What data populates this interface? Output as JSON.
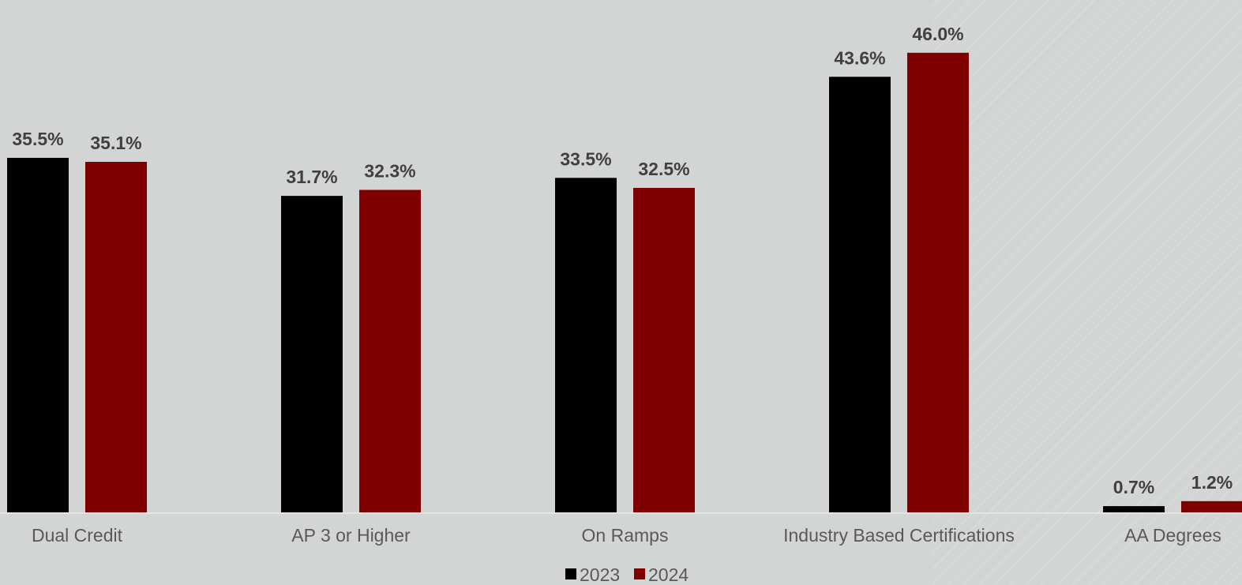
{
  "chart_data": {
    "type": "bar",
    "title": "",
    "xlabel": "",
    "ylabel": "",
    "categories": [
      "Dual Credit",
      "AP 3 or Higher",
      "On Ramps",
      "Industry Based Certifications",
      "AA Degrees"
    ],
    "series": [
      {
        "name": "2023",
        "values": [
          35.5,
          31.7,
          33.5,
          43.6,
          0.7
        ],
        "labels": [
          "35.5%",
          "31.7%",
          "33.5%",
          "43.6%",
          "0.7%"
        ],
        "color": "#000000"
      },
      {
        "name": "2024",
        "values": [
          35.1,
          32.3,
          32.5,
          46.0,
          1.2
        ],
        "labels": [
          "35.1%",
          "32.3%",
          "32.5%",
          "46.0%",
          "1.2%"
        ],
        "color": "#800000"
      }
    ],
    "ylim": [
      0,
      49.3
    ],
    "grid": false,
    "legend_position": "bottom-center",
    "colors": {
      "background": "#d3d5d4",
      "label_text": "#404040",
      "category_text": "#595959",
      "baseline": "#e4e6e5"
    }
  }
}
